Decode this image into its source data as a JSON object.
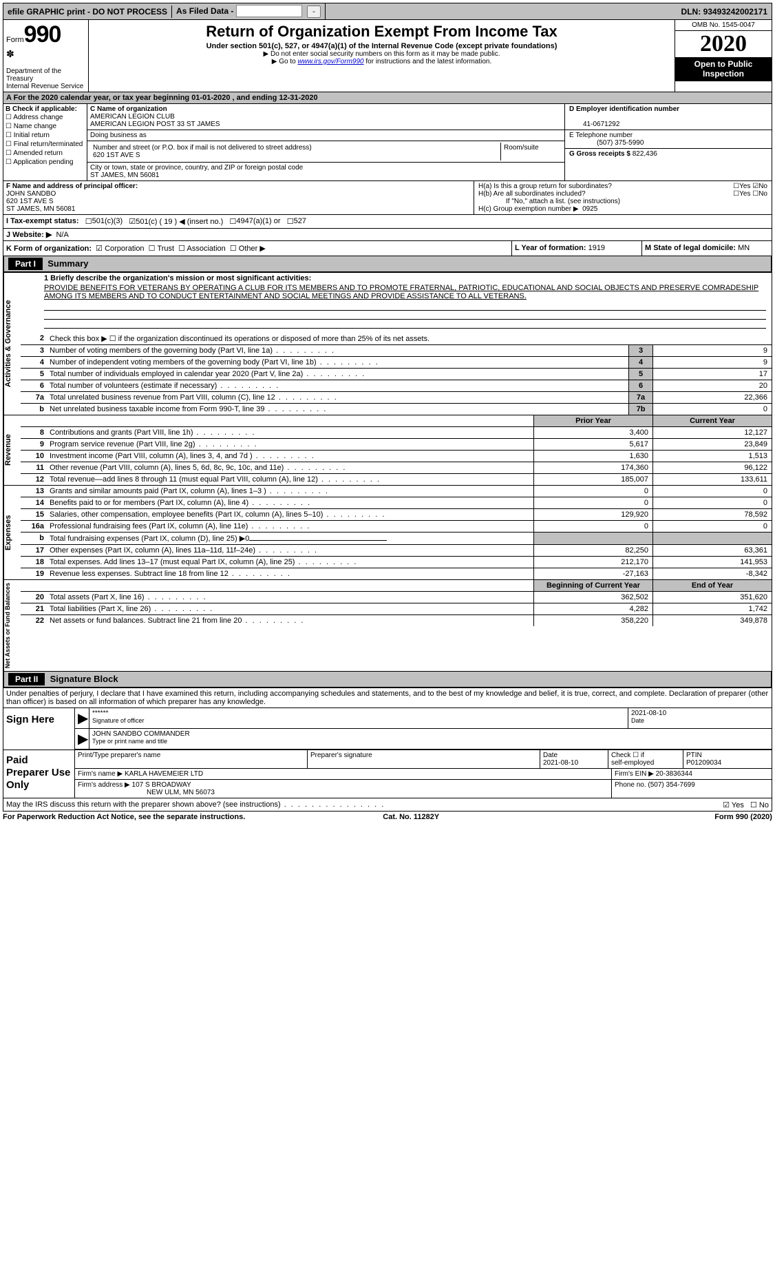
{
  "topbar": {
    "efile": "efile GRAPHIC print - DO NOT PROCESS",
    "asfiled": "As Filed Data -",
    "dln_label": "DLN:",
    "dln": "93493242002171"
  },
  "header": {
    "form_word": "Form",
    "form_no": "990",
    "dept": "Department of the Treasury",
    "irs": "Internal Revenue Service",
    "title": "Return of Organization Exempt From Income Tax",
    "subtitle": "Under section 501(c), 527, or 4947(a)(1) of the Internal Revenue Code (except private foundations)",
    "note1": "▶ Do not enter social security numbers on this form as it may be made public.",
    "note2_pre": "▶ Go to ",
    "note2_link": "www.irs.gov/Form990",
    "note2_post": " for instructions and the latest information.",
    "omb": "OMB No. 1545-0047",
    "year": "2020",
    "open": "Open to Public Inspection"
  },
  "row_a": "A  For the 2020 calendar year, or tax year beginning 01-01-2020   , and ending 12-31-2020",
  "b": {
    "label": "B Check if applicable:",
    "opts": [
      "Address change",
      "Name change",
      "Initial return",
      "Final return/terminated",
      "Amended return",
      "Application pending"
    ]
  },
  "c": {
    "name_label": "C Name of organization",
    "name1": "AMERICAN LEGION CLUB",
    "name2": "AMERICAN LEGION POST 33 ST JAMES",
    "dba_label": "Doing business as",
    "addr_label": "Number and street (or P.O. box if mail is not delivered to street address)",
    "room_label": "Room/suite",
    "addr": "620 1ST AVE S",
    "city_label": "City or town, state or province, country, and ZIP or foreign postal code",
    "city": "ST JAMES, MN  56081"
  },
  "d": {
    "label": "D Employer identification number",
    "val": "41-0671292"
  },
  "e": {
    "label": "E Telephone number",
    "val": "(507) 375-5990"
  },
  "g": {
    "label": "G Gross receipts $",
    "val": "822,436"
  },
  "f": {
    "label": "F  Name and address of principal officer:",
    "name": "JOHN SANDBO",
    "addr": "620 1ST AVE S",
    "city": "ST JAMES, MN  56081"
  },
  "h": {
    "a": "H(a)  Is this a group return for subordinates?",
    "b": "H(b)  Are all subordinates included?",
    "note": "If \"No,\" attach a list. (see instructions)",
    "c": "H(c)  Group exemption number ▶",
    "c_val": "0925",
    "yes": "Yes",
    "no": "No"
  },
  "i": {
    "label": "I  Tax-exempt status:",
    "opt1": "501(c)(3)",
    "opt2": "501(c) ( 19 ) ◀ (insert no.)",
    "opt3": "4947(a)(1) or",
    "opt4": "527"
  },
  "j": {
    "label": "J  Website: ▶",
    "val": "N/A"
  },
  "k": {
    "label": "K Form of organization:",
    "corp": "Corporation",
    "trust": "Trust",
    "assoc": "Association",
    "other": "Other ▶"
  },
  "l": {
    "label": "L Year of formation:",
    "val": "1919"
  },
  "m": {
    "label": "M State of legal domicile:",
    "val": "MN"
  },
  "part1": {
    "hdr": "Part I",
    "title": "Summary"
  },
  "mission": {
    "label": "1  Briefly describe the organization's mission or most significant activities:",
    "text": "PROVIDE BENEFITS FOR VETERANS BY OPERATING A CLUB FOR ITS MEMBERS AND TO PROMOTE FRATERNAL, PATRIOTIC, EDUCATIONAL AND SOCIAL OBJECTS AND PRESERVE COMRADESHIP AMONG ITS MEMBERS AND TO CONDUCT ENTERTAINMENT AND SOCIAL MEETINGS AND PROVIDE ASSISTANCE TO ALL VETERANS."
  },
  "line2": "Check this box ▶ ☐ if the organization discontinued its operations or disposed of more than 25% of its net assets.",
  "gov_side": "Activities & Governance",
  "rev_side": "Revenue",
  "exp_side": "Expenses",
  "net_side": "Net Assets or Fund Balances",
  "lines_gov": [
    {
      "n": "3",
      "t": "Number of voting members of the governing body (Part VI, line 1a)",
      "box": "3",
      "v": "9"
    },
    {
      "n": "4",
      "t": "Number of independent voting members of the governing body (Part VI, line 1b)",
      "box": "4",
      "v": "9"
    },
    {
      "n": "5",
      "t": "Total number of individuals employed in calendar year 2020 (Part V, line 2a)",
      "box": "5",
      "v": "17"
    },
    {
      "n": "6",
      "t": "Total number of volunteers (estimate if necessary)",
      "box": "6",
      "v": "20"
    },
    {
      "n": "7a",
      "t": "Total unrelated business revenue from Part VIII, column (C), line 12",
      "box": "7a",
      "v": "22,366"
    },
    {
      "n": "b",
      "t": "Net unrelated business taxable income from Form 990-T, line 39",
      "box": "7b",
      "v": "0"
    }
  ],
  "col_hdrs": {
    "prior": "Prior Year",
    "current": "Current Year"
  },
  "lines_rev": [
    {
      "n": "8",
      "t": "Contributions and grants (Part VIII, line 1h)",
      "p": "3,400",
      "c": "12,127"
    },
    {
      "n": "9",
      "t": "Program service revenue (Part VIII, line 2g)",
      "p": "5,617",
      "c": "23,849"
    },
    {
      "n": "10",
      "t": "Investment income (Part VIII, column (A), lines 3, 4, and 7d )",
      "p": "1,630",
      "c": "1,513"
    },
    {
      "n": "11",
      "t": "Other revenue (Part VIII, column (A), lines 5, 6d, 8c, 9c, 10c, and 11e)",
      "p": "174,360",
      "c": "96,122"
    },
    {
      "n": "12",
      "t": "Total revenue—add lines 8 through 11 (must equal Part VIII, column (A), line 12)",
      "p": "185,007",
      "c": "133,611"
    }
  ],
  "lines_exp": [
    {
      "n": "13",
      "t": "Grants and similar amounts paid (Part IX, column (A), lines 1–3 )",
      "p": "0",
      "c": "0"
    },
    {
      "n": "14",
      "t": "Benefits paid to or for members (Part IX, column (A), line 4)",
      "p": "0",
      "c": "0"
    },
    {
      "n": "15",
      "t": "Salaries, other compensation, employee benefits (Part IX, column (A), lines 5–10)",
      "p": "129,920",
      "c": "78,592"
    },
    {
      "n": "16a",
      "t": "Professional fundraising fees (Part IX, column (A), line 11e)",
      "p": "0",
      "c": "0"
    },
    {
      "n": "b",
      "t": "Total fundraising expenses (Part IX, column (D), line 25) ▶0",
      "p": "",
      "c": "",
      "noval": true
    },
    {
      "n": "17",
      "t": "Other expenses (Part IX, column (A), lines 11a–11d, 11f–24e)",
      "p": "82,250",
      "c": "63,361"
    },
    {
      "n": "18",
      "t": "Total expenses. Add lines 13–17 (must equal Part IX, column (A), line 25)",
      "p": "212,170",
      "c": "141,953"
    },
    {
      "n": "19",
      "t": "Revenue less expenses. Subtract line 18 from line 12",
      "p": "-27,163",
      "c": "-8,342"
    }
  ],
  "col_hdrs2": {
    "begin": "Beginning of Current Year",
    "end": "End of Year"
  },
  "lines_net": [
    {
      "n": "20",
      "t": "Total assets (Part X, line 16)",
      "p": "362,502",
      "c": "351,620"
    },
    {
      "n": "21",
      "t": "Total liabilities (Part X, line 26)",
      "p": "4,282",
      "c": "1,742"
    },
    {
      "n": "22",
      "t": "Net assets or fund balances. Subtract line 21 from line 20",
      "p": "358,220",
      "c": "349,878"
    }
  ],
  "part2": {
    "hdr": "Part II",
    "title": "Signature Block"
  },
  "declaration": "Under penalties of perjury, I declare that I have examined this return, including accompanying schedules and statements, and to the best of my knowledge and belief, it is true, correct, and complete. Declaration of preparer (other than officer) is based on all information of which preparer has any knowledge.",
  "sign": {
    "label": "Sign Here",
    "stars": "******",
    "sig_cap": "Signature of officer",
    "date": "2021-08-10",
    "date_cap": "Date",
    "name": "JOHN SANDBO COMMANDER",
    "name_cap": "Type or print name and title"
  },
  "prep": {
    "label": "Paid Preparer Use Only",
    "col1": "Print/Type preparer's name",
    "col2": "Preparer's signature",
    "col3": "Date",
    "date": "2021-08-10",
    "col4a": "Check ☐ if",
    "col4b": "self-employed",
    "col5": "PTIN",
    "ptin": "P01209034",
    "firm_label": "Firm's name   ▶",
    "firm": "KARLA HAVEMEIER LTD",
    "ein_label": "Firm's EIN ▶",
    "ein": "20-3836344",
    "addr_label": "Firm's address ▶",
    "addr": "107 S BROADWAY",
    "city": "NEW ULM, MN  56073",
    "phone_label": "Phone no.",
    "phone": "(507) 354-7699"
  },
  "discuss": "May the IRS discuss this return with the preparer shown above? (see instructions)",
  "foot": {
    "l": "For Paperwork Reduction Act Notice, see the separate instructions.",
    "m": "Cat. No. 11282Y",
    "r": "Form 990 (2020)"
  }
}
